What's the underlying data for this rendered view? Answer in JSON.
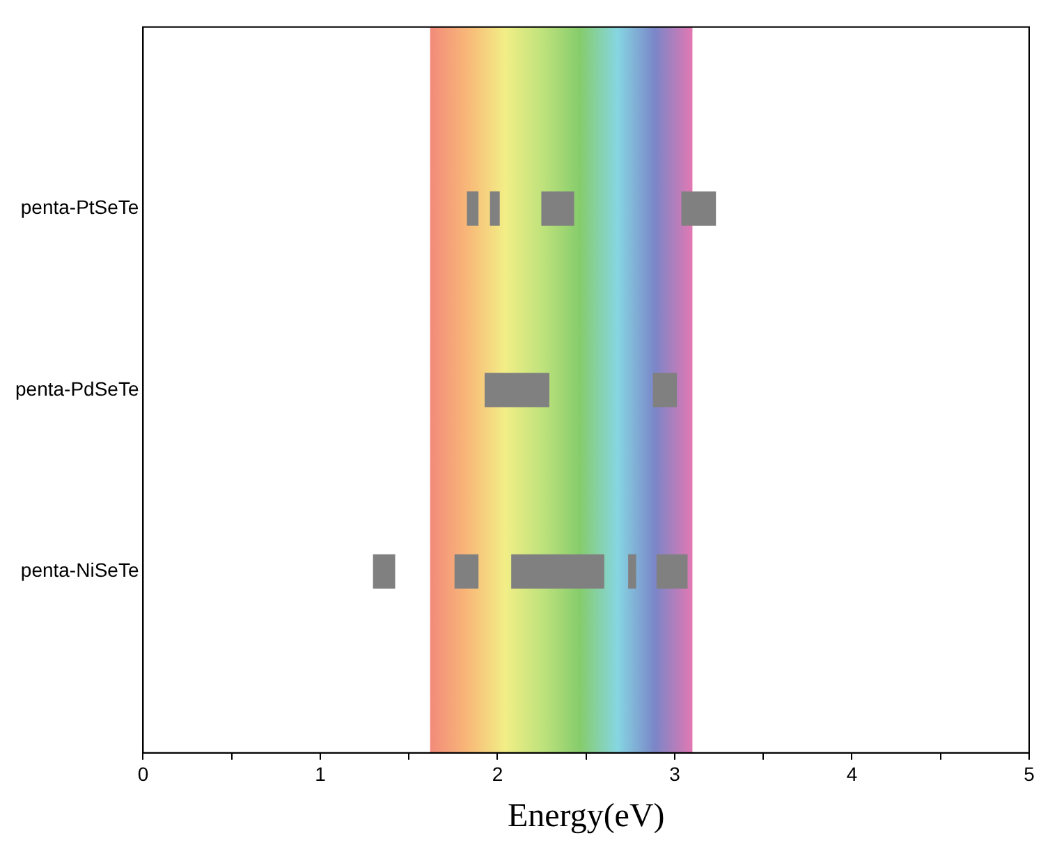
{
  "chart_data": {
    "type": "bar",
    "orientation": "horizontal",
    "xlabel": "Energy(eV)",
    "categories": [
      null,
      "penta-PtSeTe",
      "penta-PdSeTe",
      "penta-NiSeTe",
      null
    ],
    "series": [
      {
        "color": "#808080",
        "base": [
          null,
          1.83,
          1.93,
          1.3,
          null
        ],
        "values": [
          null,
          0.06,
          0.36,
          0.12,
          null
        ]
      },
      {
        "color": "#808080",
        "base": [
          null,
          1.96,
          2.88,
          1.76,
          null
        ],
        "values": [
          null,
          0.05,
          0.13,
          0.13,
          null
        ]
      },
      {
        "color": "#808080",
        "base": [
          null,
          2.25,
          null,
          2.08,
          null
        ],
        "values": [
          null,
          0.18,
          null,
          0.52,
          null
        ]
      },
      {
        "color": "#808080",
        "base": [
          null,
          3.04,
          null,
          2.74,
          null
        ],
        "values": [
          null,
          0.19,
          null,
          0.04,
          null
        ]
      },
      {
        "color": "#808080",
        "base": [
          null,
          null,
          null,
          2.9,
          null
        ],
        "values": [
          null,
          null,
          null,
          0.17,
          null
        ]
      }
    ],
    "xlim": [
      0,
      5
    ],
    "xticks": [
      0,
      {
        "value": 0.5,
        "label": null
      },
      1,
      {
        "value": 1.5,
        "label": null
      },
      2,
      {
        "value": 2.5,
        "label": null
      },
      3,
      {
        "value": 3.5,
        "label": null
      },
      4,
      {
        "value": 4.5,
        "label": null
      },
      5
    ],
    "bands": [
      {
        "axis": "x",
        "from": 1.62,
        "to": 3.1
      }
    ],
    "grid": false,
    "legend": false
  }
}
